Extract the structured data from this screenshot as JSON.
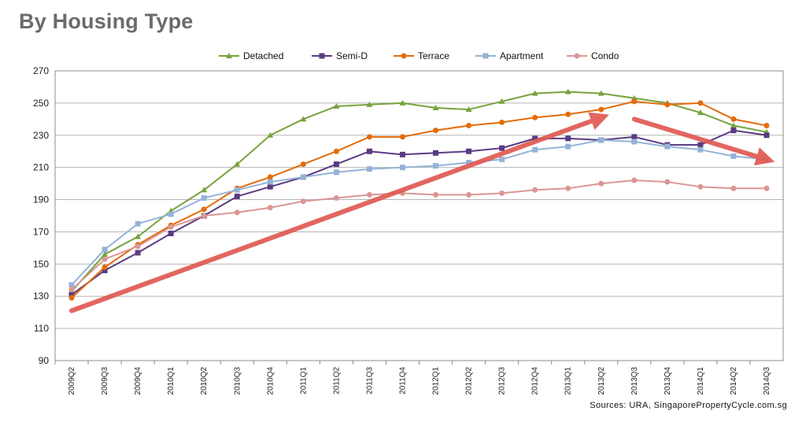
{
  "header": {
    "title": "By Housing Type"
  },
  "chart_data": {
    "type": "line",
    "title": "",
    "xlabel": "",
    "ylabel": "",
    "ylim": [
      90,
      270
    ],
    "yticks": [
      90,
      110,
      130,
      150,
      170,
      190,
      210,
      230,
      250,
      270
    ],
    "grid": true,
    "legend_position": "top",
    "categories": [
      "2009Q2",
      "2009Q3",
      "2009Q4",
      "2010Q1",
      "2010Q2",
      "2010Q3",
      "2010Q4",
      "2011Q1",
      "2011Q2",
      "2011Q3",
      "2011Q4",
      "2012Q1",
      "2012Q2",
      "2012Q3",
      "2012Q4",
      "2013Q1",
      "2013Q2",
      "2013Q3",
      "2013Q4",
      "2014Q1",
      "2014Q2",
      "2014Q3"
    ],
    "series": [
      {
        "name": "Detached",
        "color": "#77a33c",
        "marker": "triangle",
        "values": [
          133,
          156,
          167,
          183,
          196,
          212,
          230,
          240,
          248,
          249,
          250,
          247,
          246,
          251,
          256,
          257,
          256,
          253,
          250,
          244,
          236,
          232
        ]
      },
      {
        "name": "Semi-D",
        "color": "#5a3b82",
        "marker": "square",
        "values": [
          131,
          146,
          157,
          169,
          180,
          192,
          198,
          204,
          212,
          220,
          218,
          219,
          220,
          222,
          228,
          228,
          227,
          229,
          224,
          224,
          233,
          230
        ]
      },
      {
        "name": "Terrace",
        "color": "#e36c0a",
        "marker": "circle",
        "values": [
          129,
          148,
          162,
          174,
          184,
          197,
          204,
          212,
          220,
          229,
          229,
          233,
          236,
          238,
          241,
          243,
          246,
          251,
          249,
          250,
          240,
          236
        ]
      },
      {
        "name": "Apartment",
        "color": "#95b3d7",
        "marker": "square",
        "values": [
          137,
          159,
          175,
          181,
          191,
          196,
          201,
          204,
          207,
          209,
          210,
          211,
          213,
          215,
          221,
          223,
          227,
          226,
          223,
          221,
          217,
          215
        ]
      },
      {
        "name": "Condo",
        "color": "#d99795",
        "marker": "circle",
        "values": [
          134,
          153,
          161,
          173,
          180,
          182,
          185,
          189,
          191,
          193,
          194,
          193,
          193,
          194,
          196,
          197,
          200,
          202,
          201,
          198,
          197,
          197
        ]
      }
    ],
    "annotations": [
      {
        "type": "arrow",
        "color": "#e05a52",
        "from": [
          "2009Q2",
          121
        ],
        "to": [
          "2013Q2",
          241
        ]
      },
      {
        "type": "arrow",
        "color": "#e05a52",
        "from": [
          "2013Q3",
          240
        ],
        "to": [
          "2014Q3",
          215
        ]
      }
    ],
    "source": "Sources: URA, SingaporePropertyCycle.com.sg"
  }
}
